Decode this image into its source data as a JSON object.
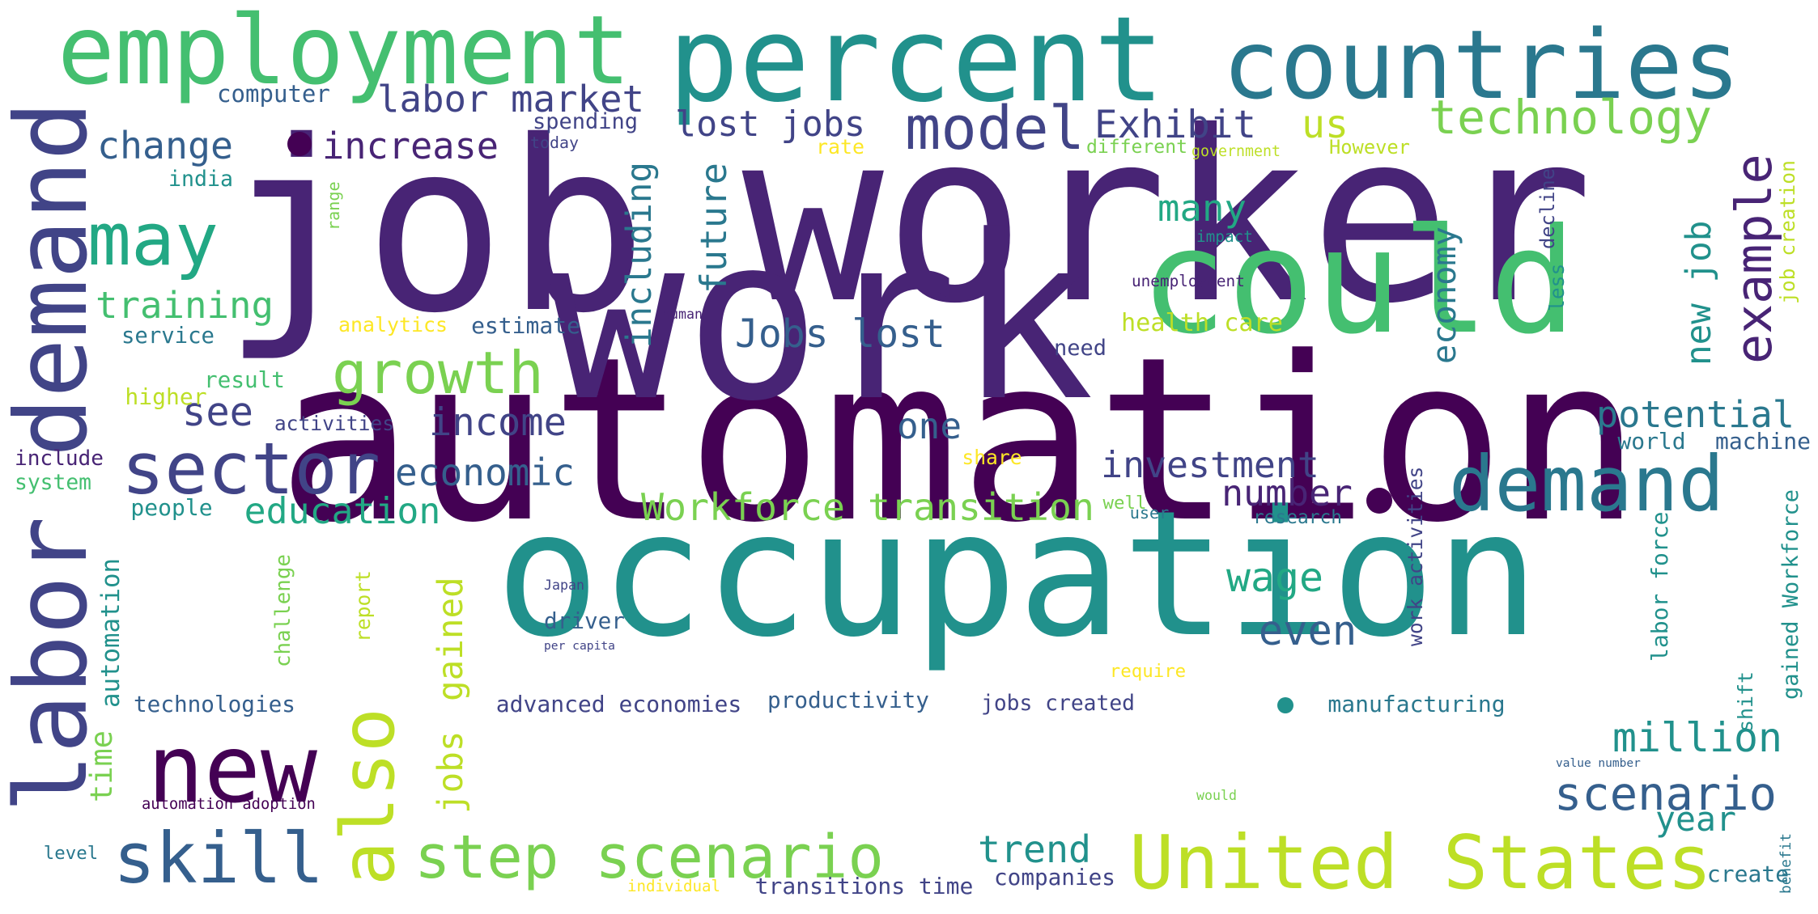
{
  "palette": [
    "#440154",
    "#482475",
    "#414487",
    "#355f8d",
    "#2a788e",
    "#21918c",
    "#22a884",
    "#44bf70",
    "#7ad151",
    "#bddf26",
    "#fde725"
  ],
  "words": [
    {
      "text": "automation",
      "color": "#440154"
    },
    {
      "text": "job",
      "color": "#482475"
    },
    {
      "text": "worker",
      "color": "#482475"
    },
    {
      "text": "work",
      "color": "#482475"
    },
    {
      "text": "occupation",
      "color": "#21918c"
    },
    {
      "text": "percent",
      "color": "#21918c"
    },
    {
      "text": "could",
      "color": "#44bf70"
    },
    {
      "text": "countries",
      "color": "#2a788e"
    },
    {
      "text": "employment",
      "color": "#44bf70"
    },
    {
      "text": "labor demand",
      "color": "#414487"
    },
    {
      "text": "United States",
      "color": "#bddf26"
    },
    {
      "text": "new",
      "color": "#440154"
    },
    {
      "text": "demand",
      "color": "#2a788e"
    },
    {
      "text": "technology",
      "color": "#7ad151"
    },
    {
      "text": "sector",
      "color": "#414487"
    },
    {
      "text": "skill",
      "color": "#355f8d"
    },
    {
      "text": "step scenario",
      "color": "#7ad151"
    },
    {
      "text": "also",
      "color": "#bddf26"
    },
    {
      "text": "may",
      "color": "#22a884"
    },
    {
      "text": "model",
      "color": "#414487"
    },
    {
      "text": "growth",
      "color": "#7ad151"
    },
    {
      "text": "example",
      "color": "#482475"
    },
    {
      "text": "scenario",
      "color": "#355f8d"
    },
    {
      "text": "potential",
      "color": "#2a788e"
    },
    {
      "text": "million",
      "color": "#21918c"
    },
    {
      "text": "lost jobs",
      "color": "#414487"
    },
    {
      "text": "Jobs lost",
      "color": "#355f8d"
    },
    {
      "text": "Workforce transition",
      "color": "#7ad151"
    },
    {
      "text": "labor market",
      "color": "#414487"
    },
    {
      "text": "increase",
      "color": "#482475"
    },
    {
      "text": "change",
      "color": "#355f8d"
    },
    {
      "text": "Exhibit",
      "color": "#414487"
    },
    {
      "text": "us",
      "color": "#bddf26"
    },
    {
      "text": "including",
      "color": "#2a788e"
    },
    {
      "text": "future",
      "color": "#2a788e"
    },
    {
      "text": "training",
      "color": "#44bf70"
    },
    {
      "text": "economy",
      "color": "#2a788e"
    },
    {
      "text": "new job",
      "color": "#21918c"
    },
    {
      "text": "many",
      "color": "#22a884"
    },
    {
      "text": "health care",
      "color": "#bddf26"
    },
    {
      "text": "income",
      "color": "#414487"
    },
    {
      "text": "economic",
      "color": "#355f8d"
    },
    {
      "text": "education",
      "color": "#22a884"
    },
    {
      "text": "investment",
      "color": "#414487"
    },
    {
      "text": "number",
      "color": "#482475"
    },
    {
      "text": "one",
      "color": "#355f8d"
    },
    {
      "text": "see",
      "color": "#414487"
    },
    {
      "text": "wage",
      "color": "#22a884"
    },
    {
      "text": "even",
      "color": "#355f8d"
    },
    {
      "text": "trend",
      "color": "#21918c"
    },
    {
      "text": "year",
      "color": "#21918c"
    },
    {
      "text": "time",
      "color": "#7ad151"
    },
    {
      "text": "automation",
      "color": "#21918c"
    },
    {
      "text": "jobs",
      "color": "#bddf26"
    },
    {
      "text": "gained",
      "color": "#bddf26"
    },
    {
      "text": "computer",
      "color": "#355f8d"
    },
    {
      "text": "spending",
      "color": "#414487"
    },
    {
      "text": "rate",
      "color": "#fde725"
    },
    {
      "text": "different",
      "color": "#7ad151"
    },
    {
      "text": "government",
      "color": "#bddf26"
    },
    {
      "text": "However",
      "color": "#bddf26"
    },
    {
      "text": "today",
      "color": "#414487"
    },
    {
      "text": "india",
      "color": "#21918c"
    },
    {
      "text": "range",
      "color": "#7ad151"
    },
    {
      "text": "impact",
      "color": "#21918c"
    },
    {
      "text": "unemployment",
      "color": "#482475"
    },
    {
      "text": "decline",
      "color": "#414487"
    },
    {
      "text": "less",
      "color": "#21918c"
    },
    {
      "text": "job creation",
      "color": "#bddf26"
    },
    {
      "text": "analytics",
      "color": "#fde725"
    },
    {
      "text": "estimate",
      "color": "#355f8d"
    },
    {
      "text": "human",
      "color": "#482475"
    },
    {
      "text": "service",
      "color": "#2a788e"
    },
    {
      "text": "need",
      "color": "#414487"
    },
    {
      "text": "result",
      "color": "#44bf70"
    },
    {
      "text": "higher",
      "color": "#bddf26"
    },
    {
      "text": "activities",
      "color": "#414487"
    },
    {
      "text": "include",
      "color": "#482475"
    },
    {
      "text": "system",
      "color": "#44bf70"
    },
    {
      "text": "share",
      "color": "#fde725"
    },
    {
      "text": "people",
      "color": "#21918c"
    },
    {
      "text": "well",
      "color": "#7ad151"
    },
    {
      "text": "world",
      "color": "#2a788e"
    },
    {
      "text": "machine",
      "color": "#355f8d"
    },
    {
      "text": "user",
      "color": "#2a788e"
    },
    {
      "text": "research",
      "color": "#2a788e"
    },
    {
      "text": "report",
      "color": "#bddf26"
    },
    {
      "text": "challenge",
      "color": "#7ad151"
    },
    {
      "text": "Japan",
      "color": "#414487"
    },
    {
      "text": "driver",
      "color": "#355f8d"
    },
    {
      "text": "per capita",
      "color": "#414487"
    },
    {
      "text": "work activities",
      "color": "#414487"
    },
    {
      "text": "labor force",
      "color": "#21918c"
    },
    {
      "text": "shift",
      "color": "#21918c"
    },
    {
      "text": "gained Workforce",
      "color": "#21918c"
    },
    {
      "text": "require",
      "color": "#fde725"
    },
    {
      "text": "technologies",
      "color": "#355f8d"
    },
    {
      "text": "advanced economies",
      "color": "#414487"
    },
    {
      "text": "productivity",
      "color": "#355f8d"
    },
    {
      "text": "jobs created",
      "color": "#414487"
    },
    {
      "text": "manufacturing",
      "color": "#2a788e"
    },
    {
      "text": "value number",
      "color": "#355f8d"
    },
    {
      "text": "would",
      "color": "#7ad151"
    },
    {
      "text": "automation adoption",
      "color": "#440154"
    },
    {
      "text": "level",
      "color": "#2a788e"
    },
    {
      "text": "companies",
      "color": "#414487"
    },
    {
      "text": "individual",
      "color": "#fde725"
    },
    {
      "text": "transitions time",
      "color": "#414487"
    },
    {
      "text": "benefit",
      "color": "#2a788e"
    },
    {
      "text": "create",
      "color": "#2a788e"
    }
  ]
}
